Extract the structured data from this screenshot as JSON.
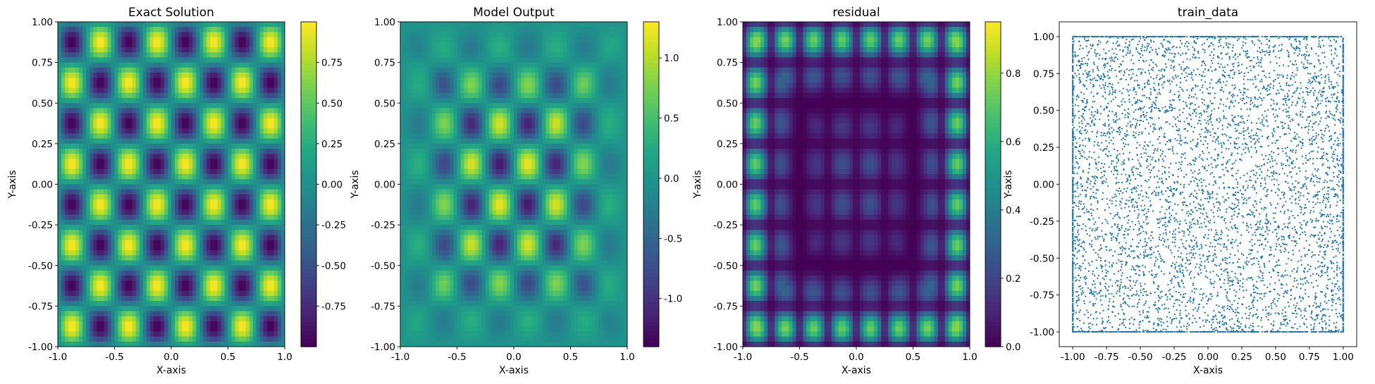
{
  "chart_data": [
    {
      "type": "heatmap",
      "title": "Exact Solution",
      "xlabel": "X-axis",
      "ylabel": "Y-axis",
      "xlim": [
        -1.0,
        1.0
      ],
      "ylim": [
        -1.0,
        1.0
      ],
      "xticks": [
        "-1.0",
        "-0.5",
        "0.0",
        "0.5",
        "1.0"
      ],
      "yticks": [
        "-1.00",
        "-0.75",
        "-0.50",
        "-0.25",
        "0.00",
        "0.25",
        "0.50",
        "0.75",
        "1.00"
      ],
      "colormap": "viridis",
      "colorbar": {
        "range": [
          -1.0,
          1.0
        ],
        "ticks": [
          "-0.75",
          "-0.50",
          "-0.25",
          "0.00",
          "0.25",
          "0.50",
          "0.75"
        ]
      },
      "field": {
        "kind": "product-of-sines",
        "cycles_x": 4,
        "cycles_y": 4
      }
    },
    {
      "type": "heatmap",
      "title": "Model Output",
      "xlabel": "X-axis",
      "ylabel": "Y-axis",
      "xlim": [
        -1.0,
        1.0
      ],
      "ylim": [
        -1.0,
        1.0
      ],
      "xticks": [
        "-1.0",
        "-0.5",
        "0.0",
        "0.5",
        "1.0"
      ],
      "yticks": [
        "-1.00",
        "-0.75",
        "-0.50",
        "-0.25",
        "0.00",
        "0.25",
        "0.50",
        "0.75",
        "1.00"
      ],
      "colormap": "viridis",
      "colorbar": {
        "range": [
          -1.4,
          1.3
        ],
        "ticks": [
          "-1.0",
          "-0.5",
          "0.0",
          "0.5",
          "1.0"
        ]
      },
      "field": {
        "kind": "damped-product-of-sines",
        "cycles_x": 4,
        "cycles_y": 4,
        "peak": 1.25
      }
    },
    {
      "type": "heatmap",
      "title": "residual",
      "xlabel": "X-axis",
      "ylabel": "Y-axis",
      "xlim": [
        -1.0,
        1.0
      ],
      "ylim": [
        -1.0,
        1.0
      ],
      "xticks": [
        "-1.0",
        "-0.5",
        "0.0",
        "0.5",
        "1.0"
      ],
      "yticks": [
        "-1.00",
        "-0.75",
        "-0.50",
        "-0.25",
        "0.00",
        "0.25",
        "0.50",
        "0.75",
        "1.00"
      ],
      "colormap": "viridis",
      "colorbar": {
        "range": [
          0.0,
          0.95
        ],
        "ticks": [
          "0.0",
          "0.2",
          "0.4",
          "0.6",
          "0.8"
        ]
      },
      "field": {
        "kind": "absolute-difference"
      }
    },
    {
      "type": "scatter",
      "title": "train_data",
      "xlabel": "X-axis",
      "ylabel": "Y-axis",
      "xlim": [
        -1.1,
        1.1
      ],
      "ylim": [
        -1.1,
        1.1
      ],
      "xticks": [
        "-1.00",
        "-0.75",
        "-0.50",
        "-0.25",
        "0.00",
        "0.25",
        "0.50",
        "0.75",
        "1.00"
      ],
      "yticks": [
        "-1.00",
        "-0.75",
        "-0.50",
        "-0.25",
        "0.00",
        "0.25",
        "0.50",
        "0.75",
        "1.00"
      ],
      "color": "#1f77b4",
      "points": {
        "distribution": "uniform",
        "domain": [
          -1.0,
          1.0
        ],
        "interior_count": 5000,
        "boundary_count_per_edge": 400
      }
    }
  ]
}
